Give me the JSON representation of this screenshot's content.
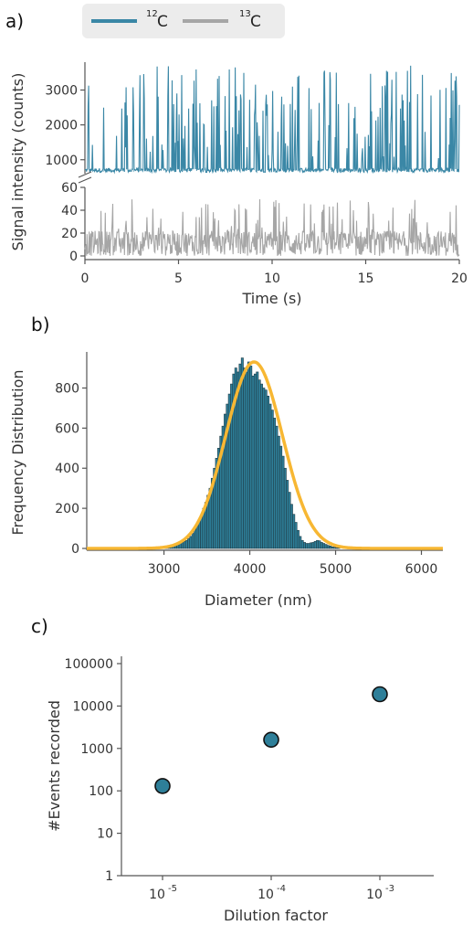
{
  "chart_data": [
    {
      "panel_label": "a)",
      "type": "line",
      "xlabel": "Time (s)",
      "ylabel": "Signal intensity (counts)",
      "xlim": [
        0,
        20
      ],
      "x_ticks": [
        "0",
        "5",
        "10",
        "15",
        "20"
      ],
      "broken_y_axis": true,
      "upper_ylim": [
        600,
        3800
      ],
      "upper_y_ticks": [
        "1000",
        "2000",
        "3000"
      ],
      "lower_ylim": [
        0,
        60
      ],
      "lower_y_ticks": [
        "0",
        "20",
        "40",
        "60"
      ],
      "legend_placement": "top",
      "series": [
        {
          "name": "C",
          "isotope_mass": "12",
          "color": "#3a87a6",
          "baseline": 700,
          "spike_max": 3700
        },
        {
          "name": "C",
          "isotope_mass": "13",
          "color": "#a6a6a6",
          "baseline": 10,
          "spike_max": 50
        }
      ]
    },
    {
      "panel_label": "b)",
      "type": "bar",
      "xlabel": "Diameter (nm)",
      "ylabel": "Frequency Distribution",
      "xlim": [
        2100,
        6250
      ],
      "ylim": [
        0,
        980
      ],
      "x_ticks": [
        "3000",
        "4000",
        "5000",
        "6000"
      ],
      "y_ticks": [
        "0",
        "200",
        "400",
        "600",
        "800"
      ],
      "histogram_color": "#2e7f99",
      "fit_color": "#f7b733",
      "fit": {
        "type": "gaussian",
        "mean": 4050,
        "sd": 330,
        "peak": 930
      },
      "histogram": {
        "bin_start": 3000,
        "bin_width": 25,
        "values": [
          6,
          8,
          10,
          12,
          14,
          17,
          20,
          25,
          30,
          35,
          40,
          50,
          60,
          75,
          95,
          115,
          140,
          165,
          200,
          230,
          265,
          300,
          350,
          400,
          450,
          500,
          560,
          610,
          670,
          720,
          770,
          820,
          870,
          900,
          880,
          920,
          950,
          900,
          880,
          930,
          910,
          860,
          870,
          880,
          840,
          820,
          800,
          790,
          760,
          720,
          690,
          650,
          610,
          560,
          510,
          460,
          400,
          340,
          280,
          220,
          170,
          130,
          90,
          60,
          40,
          30,
          25,
          25,
          28,
          30,
          35,
          40,
          38,
          30,
          25,
          20,
          15,
          12,
          8,
          6,
          4,
          3
        ]
      }
    },
    {
      "panel_label": "c)",
      "type": "scatter",
      "xlabel": "Dilution factor",
      "ylabel": "#Events recorded",
      "y_scale": "log",
      "ylim": [
        1,
        100000
      ],
      "y_ticks": [
        "1",
        "10",
        "100",
        "1000",
        "10000",
        "100000"
      ],
      "x_tick_labels": [
        {
          "base": "10",
          "exp": "-5"
        },
        {
          "base": "10",
          "exp": "-4"
        },
        {
          "base": "10",
          "exp": "-3"
        }
      ],
      "point_color": "#2e7f99",
      "x": [
        -5,
        -4,
        -3
      ],
      "y": [
        130,
        1600,
        19000
      ]
    }
  ]
}
